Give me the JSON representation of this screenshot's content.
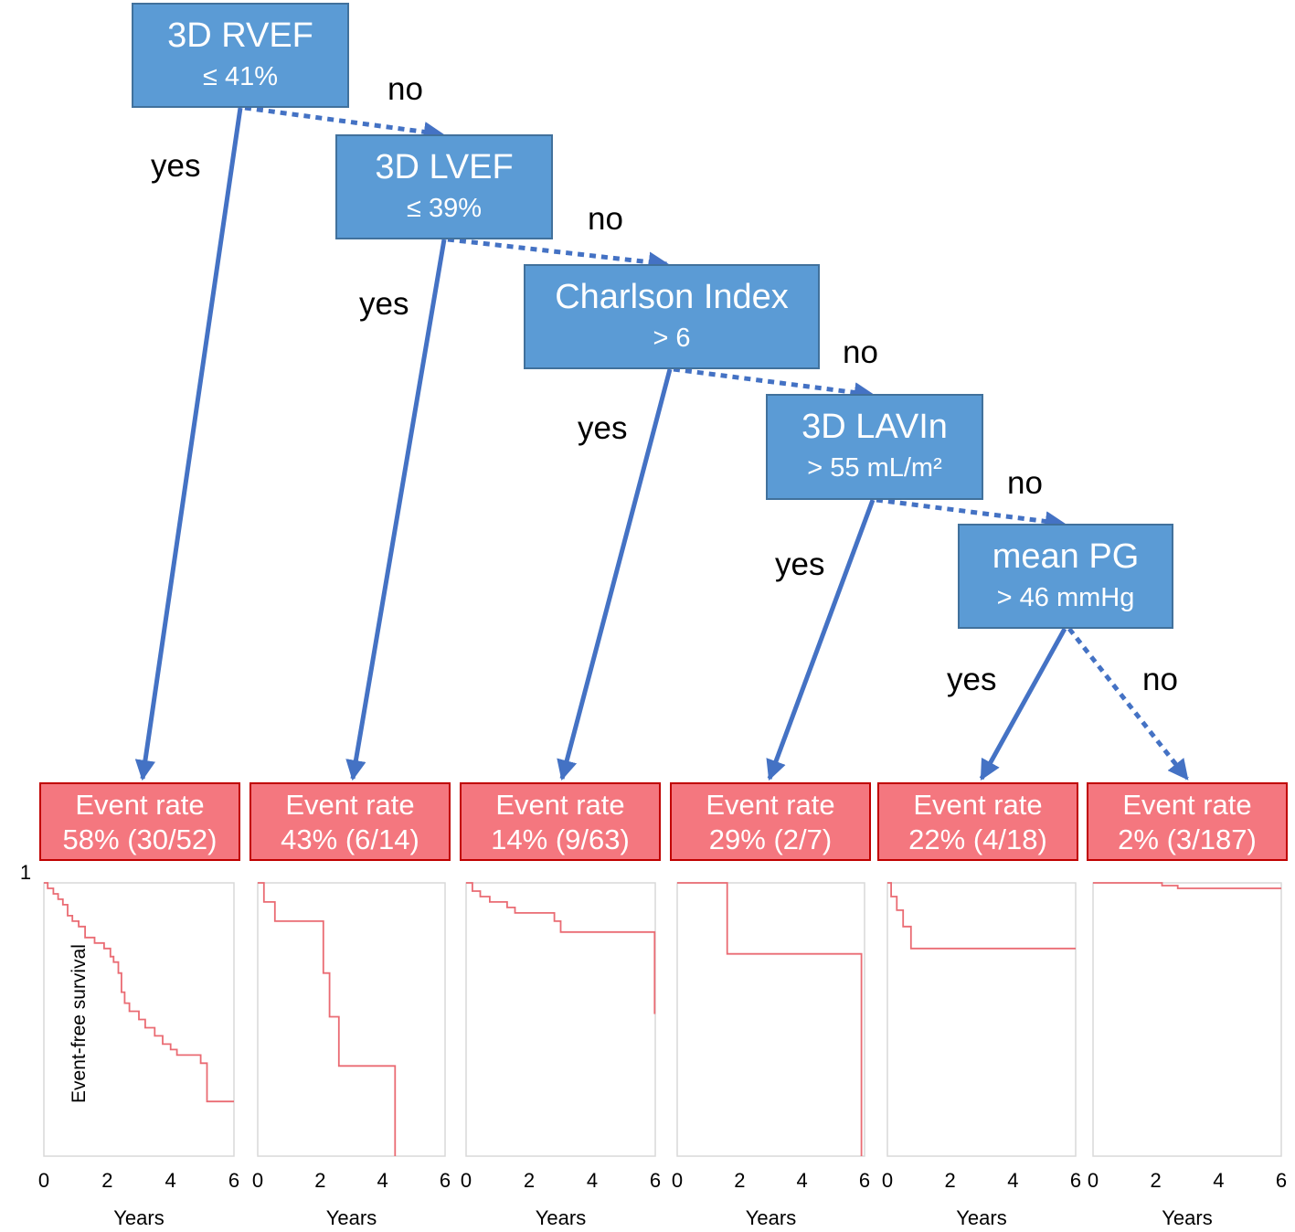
{
  "decision_nodes": [
    {
      "title": "3D RVEF",
      "threshold": "≤ 41%"
    },
    {
      "title": "3D LVEF",
      "threshold": "≤ 39%"
    },
    {
      "title": "Charlson Index",
      "threshold": "> 6"
    },
    {
      "title": "3D LAVIn",
      "threshold": "> 55 mL/m²"
    },
    {
      "title": "mean PG",
      "threshold": "> 46 mmHg"
    }
  ],
  "branch_labels": {
    "yes": "yes",
    "no": "no"
  },
  "outcomes": [
    {
      "label": "Event rate",
      "value": "58% (30/52)"
    },
    {
      "label": "Event rate",
      "value": "43% (6/14)"
    },
    {
      "label": "Event rate",
      "value": "14% (9/63)"
    },
    {
      "label": "Event rate",
      "value": "29% (2/7)"
    },
    {
      "label": "Event rate",
      "value": "22% (4/18)"
    },
    {
      "label": "Event rate",
      "value": "2% (3/187)"
    }
  ],
  "chart_data": {
    "type": "line",
    "title": "",
    "ylabel": "Event-free survival",
    "y_top_label": "1",
    "xlabel": "Years",
    "xlim": [
      0,
      6
    ],
    "ylim": [
      0,
      1
    ],
    "x_ticks": [
      "0",
      "2",
      "4",
      "6"
    ],
    "series": [
      {
        "name": "58% (30/52)",
        "points": [
          [
            0,
            1.0
          ],
          [
            0.12,
            0.98
          ],
          [
            0.3,
            0.96
          ],
          [
            0.45,
            0.94
          ],
          [
            0.6,
            0.92
          ],
          [
            0.75,
            0.88
          ],
          [
            0.9,
            0.86
          ],
          [
            1.1,
            0.84
          ],
          [
            1.3,
            0.8
          ],
          [
            1.6,
            0.78
          ],
          [
            1.9,
            0.76
          ],
          [
            2.1,
            0.73
          ],
          [
            2.2,
            0.71
          ],
          [
            2.35,
            0.67
          ],
          [
            2.45,
            0.6
          ],
          [
            2.55,
            0.56
          ],
          [
            2.7,
            0.53
          ],
          [
            3.0,
            0.5
          ],
          [
            3.2,
            0.47
          ],
          [
            3.5,
            0.44
          ],
          [
            3.75,
            0.41
          ],
          [
            4.0,
            0.39
          ],
          [
            4.2,
            0.37
          ],
          [
            4.95,
            0.34
          ],
          [
            5.15,
            0.2
          ],
          [
            6.0,
            0.2
          ]
        ]
      },
      {
        "name": "43% (6/14)",
        "points": [
          [
            0,
            1.0
          ],
          [
            0.2,
            0.93
          ],
          [
            0.55,
            0.86
          ],
          [
            2.1,
            0.67
          ],
          [
            2.3,
            0.51
          ],
          [
            2.6,
            0.33
          ],
          [
            4.4,
            0.0
          ]
        ]
      },
      {
        "name": "14% (9/63)",
        "points": [
          [
            0,
            1.0
          ],
          [
            0.2,
            0.97
          ],
          [
            0.45,
            0.95
          ],
          [
            0.75,
            0.93
          ],
          [
            1.3,
            0.91
          ],
          [
            1.55,
            0.89
          ],
          [
            2.8,
            0.86
          ],
          [
            3.0,
            0.82
          ],
          [
            5.95,
            0.82
          ],
          [
            5.98,
            0.52
          ]
        ]
      },
      {
        "name": "29% (2/7)",
        "points": [
          [
            0,
            1.0
          ],
          [
            1.6,
            0.74
          ],
          [
            5.9,
            0.0
          ]
        ]
      },
      {
        "name": "22% (4/18)",
        "points": [
          [
            0,
            1.0
          ],
          [
            0.12,
            0.95
          ],
          [
            0.3,
            0.9
          ],
          [
            0.5,
            0.84
          ],
          [
            0.75,
            0.76
          ],
          [
            6.0,
            0.76
          ]
        ]
      },
      {
        "name": "2% (3/187)",
        "points": [
          [
            0,
            1.0
          ],
          [
            2.2,
            0.99
          ],
          [
            2.7,
            0.98
          ],
          [
            6.0,
            0.98
          ]
        ]
      }
    ]
  }
}
